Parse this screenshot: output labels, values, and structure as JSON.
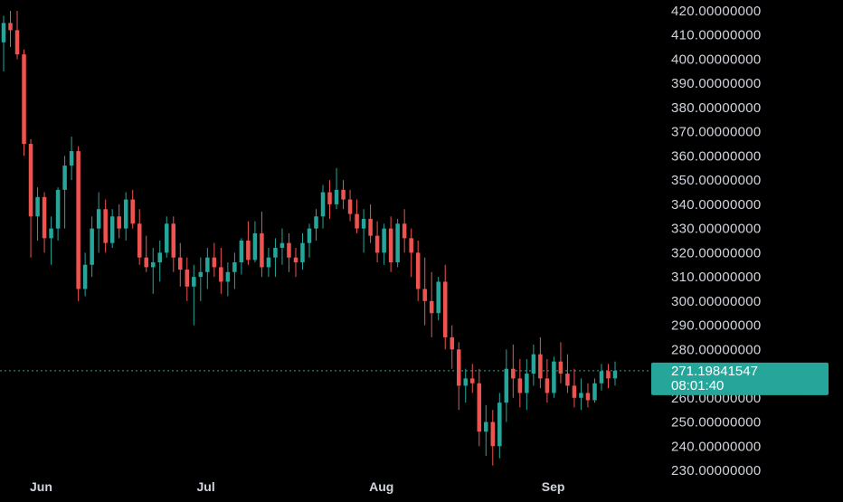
{
  "chart_data": {
    "type": "candlestick",
    "title": "",
    "xlabel": "",
    "ylabel": "",
    "ylim": [
      230,
      420
    ],
    "y_ticks": [
      "420.00000000",
      "410.00000000",
      "400.00000000",
      "390.00000000",
      "380.00000000",
      "370.00000000",
      "360.00000000",
      "350.00000000",
      "340.00000000",
      "330.00000000",
      "320.00000000",
      "310.00000000",
      "300.00000000",
      "290.00000000",
      "280.00000000",
      "270.00000000",
      "260.00000000",
      "250.00000000",
      "240.00000000",
      "230.00000000"
    ],
    "x_ticks": [
      {
        "label": "Jun",
        "day": 0
      },
      {
        "label": "Jul",
        "day": 30
      },
      {
        "label": "Aug",
        "day": 61
      },
      {
        "label": "Sep",
        "day": 92
      }
    ],
    "grid": false,
    "colors": {
      "up": "#26a69a",
      "down": "#ef5350",
      "axis_text": "#d1d4dc",
      "last_price_line": "#26a69a",
      "background": "#000000"
    },
    "last_price": {
      "value": 271.19841547,
      "label": "271.19841547",
      "countdown": "08:01:40"
    },
    "candles": [
      [
        407,
        418,
        395,
        415
      ],
      [
        415,
        420,
        405,
        412
      ],
      [
        412,
        420,
        400,
        402
      ],
      [
        402,
        404,
        360,
        365
      ],
      [
        365,
        367,
        318,
        335
      ],
      [
        335,
        347,
        325,
        343
      ],
      [
        343,
        345,
        320,
        326
      ],
      [
        326,
        335,
        315,
        330
      ],
      [
        330,
        347,
        325,
        346
      ],
      [
        346,
        360,
        330,
        356
      ],
      [
        356,
        368,
        350,
        362
      ],
      [
        362,
        364,
        300,
        305
      ],
      [
        305,
        320,
        302,
        315
      ],
      [
        315,
        335,
        310,
        330
      ],
      [
        330,
        345,
        320,
        338
      ],
      [
        338,
        342,
        320,
        324
      ],
      [
        324,
        338,
        322,
        335
      ],
      [
        335,
        340,
        326,
        330
      ],
      [
        330,
        345,
        325,
        342
      ],
      [
        342,
        346,
        330,
        332
      ],
      [
        332,
        338,
        315,
        318
      ],
      [
        318,
        327,
        312,
        314
      ],
      [
        314,
        322,
        303,
        316
      ],
      [
        316,
        325,
        308,
        320
      ],
      [
        320,
        335,
        318,
        332
      ],
      [
        332,
        335,
        312,
        318
      ],
      [
        318,
        324,
        306,
        313
      ],
      [
        313,
        318,
        300,
        306
      ],
      [
        306,
        315,
        290,
        310
      ],
      [
        310,
        318,
        300,
        312
      ],
      [
        312,
        322,
        305,
        318
      ],
      [
        318,
        324,
        310,
        314
      ],
      [
        314,
        322,
        303,
        308
      ],
      [
        308,
        316,
        302,
        312
      ],
      [
        312,
        320,
        305,
        316
      ],
      [
        316,
        326,
        311,
        325
      ],
      [
        325,
        333,
        315,
        317
      ],
      [
        317,
        333,
        316,
        328
      ],
      [
        328,
        337,
        310,
        314
      ],
      [
        314,
        322,
        310,
        318
      ],
      [
        318,
        326,
        310,
        322
      ],
      [
        322,
        330,
        315,
        324
      ],
      [
        324,
        328,
        312,
        318
      ],
      [
        318,
        322,
        310,
        316
      ],
      [
        316,
        328,
        313,
        324
      ],
      [
        324,
        332,
        318,
        330
      ],
      [
        330,
        338,
        325,
        335
      ],
      [
        335,
        348,
        330,
        345
      ],
      [
        345,
        350,
        334,
        340
      ],
      [
        340,
        355,
        338,
        346
      ],
      [
        346,
        350,
        338,
        342
      ],
      [
        342,
        346,
        333,
        336
      ],
      [
        336,
        342,
        328,
        330
      ],
      [
        330,
        338,
        320,
        334
      ],
      [
        334,
        340,
        324,
        327
      ],
      [
        327,
        333,
        316,
        320
      ],
      [
        320,
        332,
        315,
        330
      ],
      [
        330,
        335,
        312,
        316
      ],
      [
        316,
        334,
        314,
        332
      ],
      [
        332,
        338,
        320,
        326
      ],
      [
        326,
        330,
        310,
        320
      ],
      [
        320,
        325,
        300,
        305
      ],
      [
        305,
        318,
        290,
        300
      ],
      [
        300,
        312,
        285,
        295
      ],
      [
        295,
        310,
        292,
        308
      ],
      [
        308,
        315,
        280,
        285
      ],
      [
        285,
        290,
        272,
        280
      ],
      [
        280,
        283,
        255,
        265
      ],
      [
        265,
        272,
        258,
        268
      ],
      [
        268,
        274,
        262,
        266
      ],
      [
        266,
        272,
        240,
        246
      ],
      [
        246,
        257,
        236,
        250
      ],
      [
        250,
        255,
        232,
        240
      ],
      [
        240,
        262,
        235,
        258
      ],
      [
        258,
        280,
        250,
        272
      ],
      [
        272,
        282,
        260,
        268
      ],
      [
        268,
        276,
        256,
        262
      ],
      [
        262,
        276,
        255,
        270
      ],
      [
        270,
        282,
        265,
        278
      ],
      [
        278,
        285,
        264,
        268
      ],
      [
        268,
        276,
        258,
        262
      ],
      [
        262,
        277,
        260,
        275
      ],
      [
        275,
        283,
        266,
        270
      ],
      [
        270,
        278,
        262,
        265
      ],
      [
        265,
        272,
        256,
        260
      ],
      [
        260,
        268,
        255,
        262
      ],
      [
        262,
        266,
        256,
        259
      ],
      [
        259,
        268,
        258,
        266
      ],
      [
        266,
        274,
        263,
        271
      ],
      [
        271,
        274,
        264,
        268
      ],
      [
        268,
        275,
        265,
        271.198
      ]
    ]
  }
}
